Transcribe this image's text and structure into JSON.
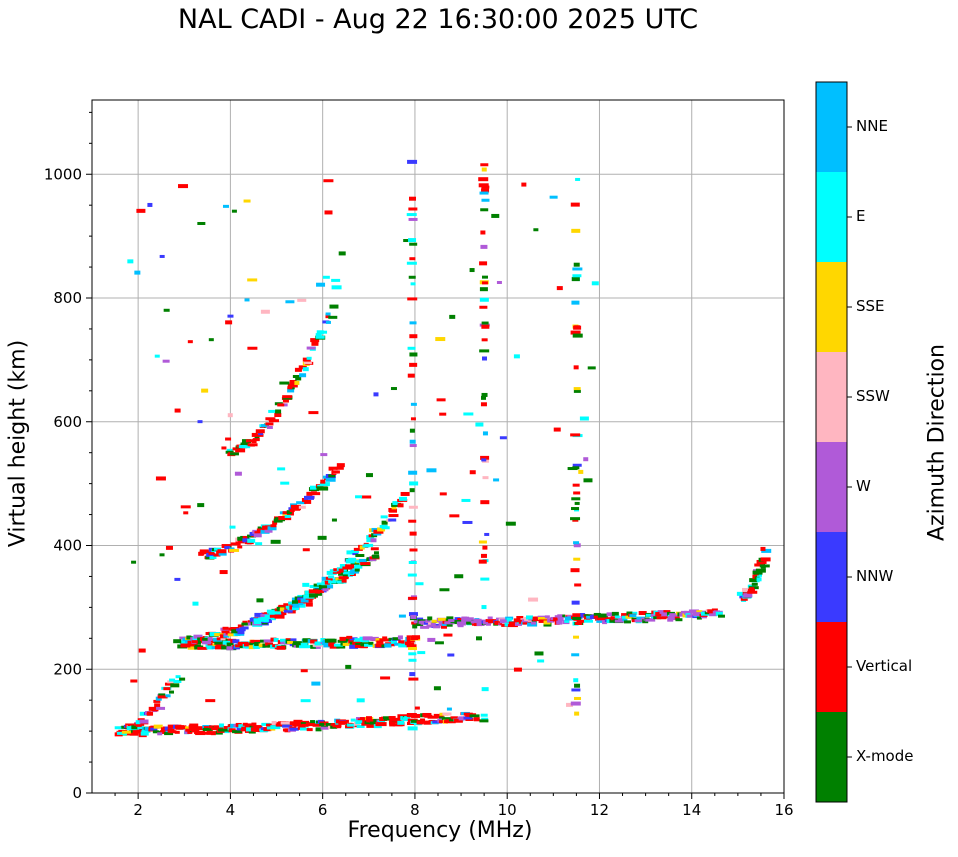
{
  "chart_data": {
    "type": "scatter",
    "title": "NAL CADI - Aug 22 16:30:00 2025 UTC",
    "xlabel": "Frequency (MHz)",
    "ylabel": "Virtual height (km)",
    "xlim": [
      1,
      16
    ],
    "ylim": [
      0,
      1120
    ],
    "xticks": [
      2,
      4,
      6,
      8,
      10,
      12,
      14,
      16
    ],
    "yticks": [
      0,
      200,
      400,
      600,
      800,
      1000
    ],
    "grid": true,
    "colorbar": {
      "title": "Azimuth Direction",
      "categories": [
        {
          "label": "X-mode",
          "color": "#008000"
        },
        {
          "label": "Vertical",
          "color": "#ff0000"
        },
        {
          "label": "NNW",
          "color": "#3a3aff"
        },
        {
          "label": "W",
          "color": "#b05ad8"
        },
        {
          "label": "SSW",
          "color": "#ffb6c1"
        },
        {
          "label": "SSE",
          "color": "#ffd700"
        },
        {
          "label": "E",
          "color": "#00ffff"
        },
        {
          "label": "NNE",
          "color": "#00bfff"
        }
      ]
    },
    "traces": [
      {
        "name": "E layer trace",
        "from_freq": 1.6,
        "to_freq": 9.3,
        "height_start": 100,
        "height_end": 125
      },
      {
        "name": "E layer low-frequency rise",
        "from_freq": 1.6,
        "to_freq": 2.9,
        "height_start": 100,
        "height_end": 190
      },
      {
        "name": "F1 echo band",
        "from_freq": 3.0,
        "to_freq": 8.0,
        "height_start": 240,
        "height_end": 245
      },
      {
        "name": "F2 ordinary trace",
        "from_freq": 3.0,
        "to_freq": 7.2,
        "height_start": 245,
        "height_end": 390
      },
      {
        "name": "F2 extraordinary trace",
        "from_freq": 4.5,
        "to_freq": 7.8,
        "height_start": 280,
        "height_end": 480
      },
      {
        "name": "Second hop trace",
        "from_freq": 3.4,
        "to_freq": 6.4,
        "height_start": 385,
        "height_end": 530
      },
      {
        "name": "Third hop trace",
        "from_freq": 4.0,
        "to_freq": 6.2,
        "height_start": 550,
        "height_end": 780
      },
      {
        "name": "Spread F band",
        "from_freq": 8.0,
        "to_freq": 14.6,
        "height_start": 275,
        "height_end": 290
      },
      {
        "name": "High-frequency echoes",
        "from_freq": 15.1,
        "to_freq": 15.6,
        "height_start": 315,
        "height_end": 388
      }
    ]
  }
}
